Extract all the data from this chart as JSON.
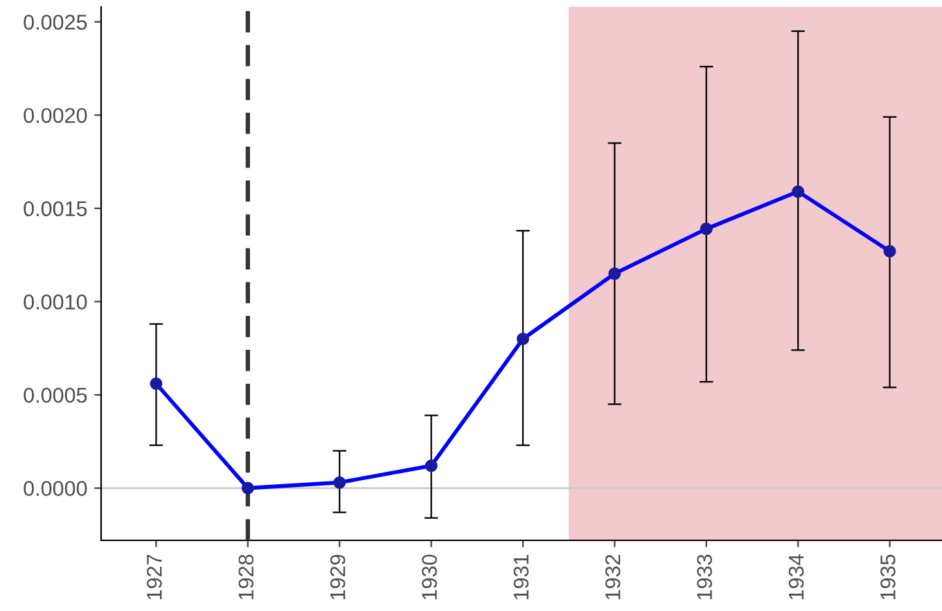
{
  "chart_data": {
    "type": "line",
    "x": [
      1927,
      1928,
      1929,
      1930,
      1931,
      1932,
      1933,
      1934,
      1935
    ],
    "series": [
      {
        "color": "#0000ff",
        "values": [
          0.00056,
          0.0,
          3e-05,
          0.00012,
          0.0008,
          0.00115,
          0.00139,
          0.00159,
          0.00127
        ],
        "errors": [
          [
            0.00023,
            0.00088
          ],
          null,
          [
            -0.00013,
            0.0002
          ],
          [
            -0.00016,
            0.00039
          ],
          [
            0.00023,
            0.00138
          ],
          [
            0.00045,
            0.00185
          ],
          [
            0.00057,
            0.00226
          ],
          [
            0.00074,
            0.00245
          ],
          [
            0.00054,
            0.00199
          ]
        ]
      }
    ],
    "marker": "circle",
    "line_style": "solid",
    "grid": false,
    "legend": false,
    "xlim": [
      1926.4,
      1935.57
    ],
    "xticks": [
      1927,
      1928,
      1929,
      1930,
      1931,
      1932,
      1933,
      1934,
      1935
    ],
    "ylim": [
      -0.00028,
      0.00258
    ],
    "yticks": [
      {
        "value": 0,
        "label": "0.0000"
      },
      {
        "value": 0.0005,
        "label": "0.0005"
      },
      {
        "value": 0.001,
        "label": "0.0010"
      },
      {
        "value": 0.0015,
        "label": "0.0015"
      },
      {
        "value": 0.002,
        "label": "0.0020"
      },
      {
        "value": 0.0025,
        "label": "0.0025"
      }
    ],
    "ref_lines": [
      {
        "axis": "x",
        "value": 1928,
        "color": "#333333",
        "line_style": "dashed"
      },
      {
        "axis": "y",
        "value": 0,
        "color": "#cccccc",
        "line_style": "solid"
      }
    ],
    "bands": [
      {
        "axis": "x",
        "from": 1931.5,
        "to": 1935.57,
        "color": "#f2c9cc"
      }
    ]
  }
}
